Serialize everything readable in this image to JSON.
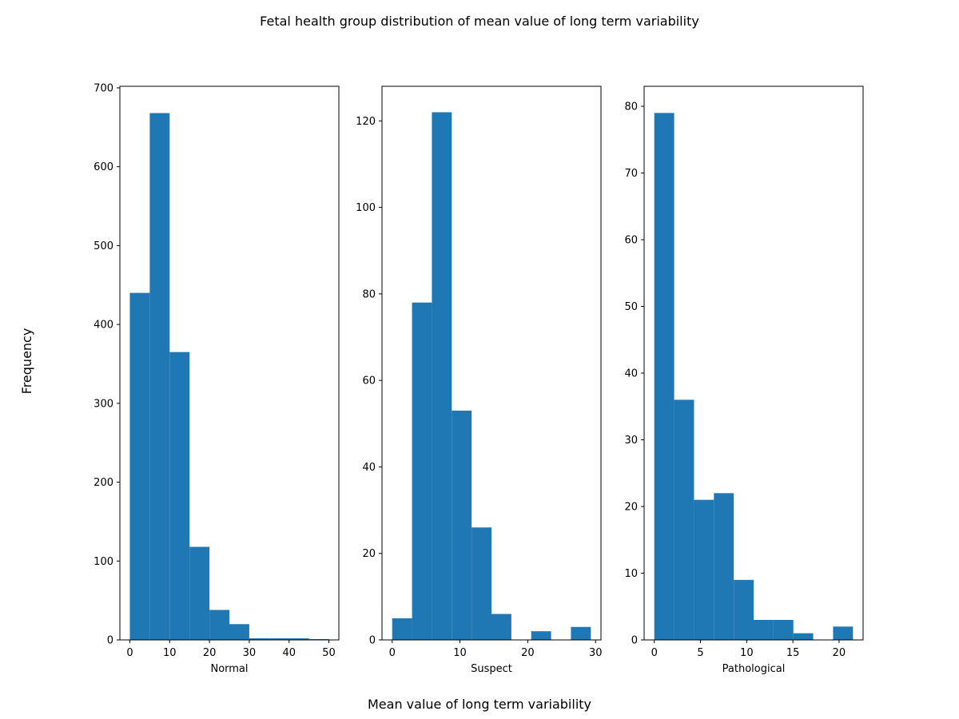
{
  "figure": {
    "title": "Fetal health group distribution of mean value of long term variability",
    "xlabel": "Mean value of long term variability",
    "ylabel": "Frequency"
  },
  "chart_data": [
    {
      "type": "bar",
      "xlabel": "Normal",
      "bar_color": "#1f77b4",
      "xlim": [
        -2.5,
        52.5
      ],
      "ylim": [
        0,
        702
      ],
      "xticks": [
        0,
        10,
        20,
        30,
        40,
        50
      ],
      "yticks": [
        0,
        100,
        200,
        300,
        400,
        500,
        600,
        700
      ],
      "bin_edges": [
        0,
        5,
        10,
        15,
        20,
        25,
        30,
        35,
        40,
        45,
        50
      ],
      "values": [
        440,
        668,
        365,
        118,
        38,
        20,
        2,
        2,
        2,
        1
      ]
    },
    {
      "type": "bar",
      "xlabel": "Suspect",
      "bar_color": "#1f77b4",
      "xlim": [
        -1.5,
        30.8
      ],
      "ylim": [
        0,
        128
      ],
      "xticks": [
        0,
        10,
        20,
        30
      ],
      "yticks": [
        0,
        20,
        40,
        60,
        80,
        100,
        120
      ],
      "bin_edges": [
        0,
        2.93,
        5.86,
        8.79,
        11.72,
        14.65,
        17.58,
        20.51,
        23.44,
        26.37,
        29.3
      ],
      "values": [
        5,
        78,
        122,
        53,
        26,
        6,
        0,
        2,
        0,
        3
      ]
    },
    {
      "type": "bar",
      "xlabel": "Pathological",
      "bar_color": "#1f77b4",
      "xlim": [
        -1.1,
        22.6
      ],
      "ylim": [
        0,
        83
      ],
      "xticks": [
        0,
        5,
        10,
        15,
        20
      ],
      "yticks": [
        0,
        10,
        20,
        30,
        40,
        50,
        60,
        70,
        80
      ],
      "bin_edges": [
        0,
        2.15,
        4.3,
        6.45,
        8.6,
        10.75,
        12.9,
        15.05,
        17.2,
        19.35,
        21.5
      ],
      "values": [
        79,
        36,
        21,
        22,
        9,
        3,
        3,
        1,
        0,
        2
      ]
    }
  ]
}
